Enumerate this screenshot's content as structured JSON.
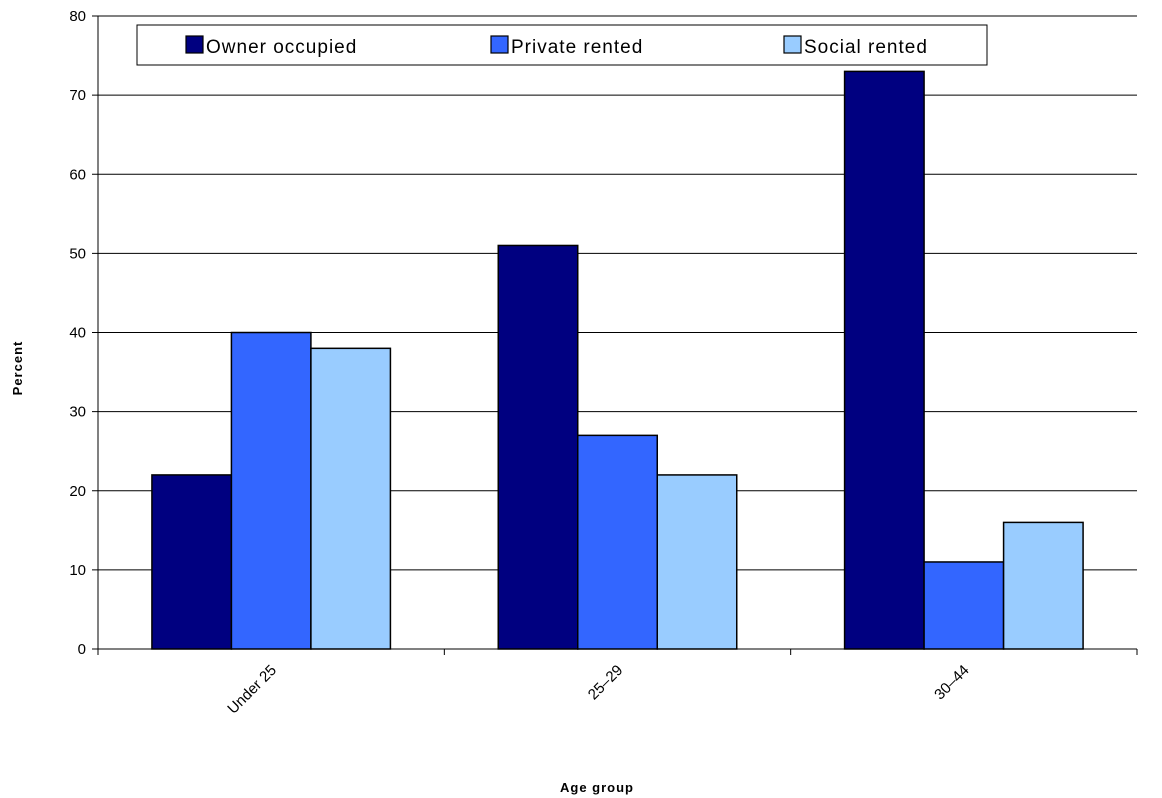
{
  "chart_data": {
    "type": "bar",
    "categories": [
      "Under 25",
      "25–29",
      "30–44"
    ],
    "series": [
      {
        "name": "Owner occupied",
        "values": [
          22,
          51,
          73
        ],
        "color": "#000080"
      },
      {
        "name": "Private rented",
        "values": [
          40,
          27,
          11
        ],
        "color": "#3366ff"
      },
      {
        "name": "Social rented",
        "values": [
          38,
          22,
          16
        ],
        "color": "#99ccff"
      }
    ],
    "xlabel": "Age group",
    "ylabel": "Percent",
    "ylim": [
      0,
      80
    ],
    "yticks": [
      0,
      10,
      20,
      30,
      40,
      50,
      60,
      70,
      80
    ],
    "grid": true,
    "legend_position": "top"
  }
}
